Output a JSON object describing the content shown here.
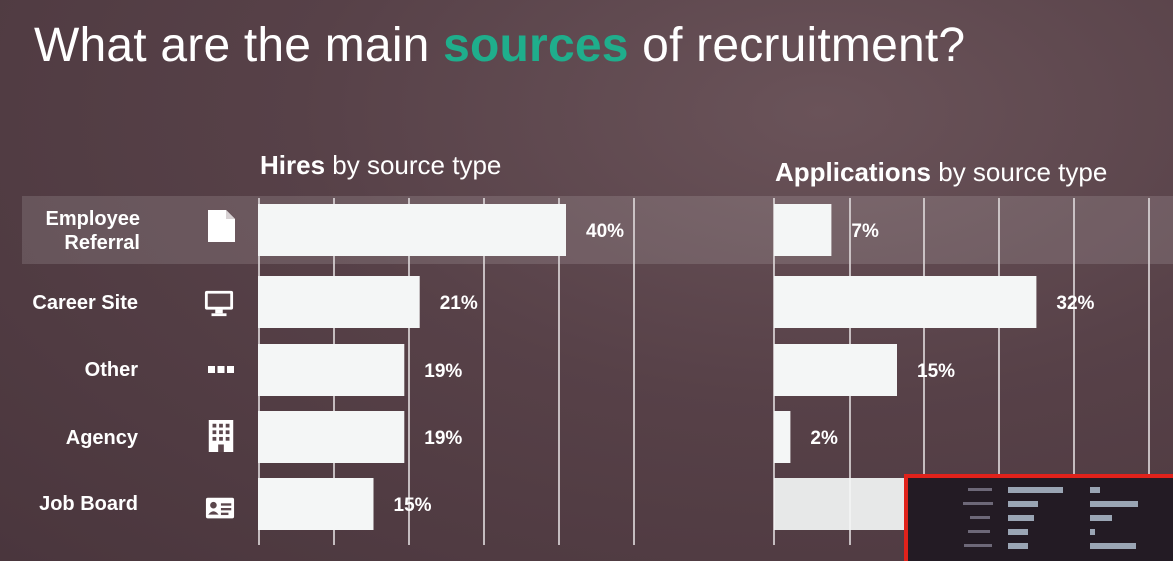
{
  "slide": {
    "title_before": "What are the main ",
    "title_accent": "sources",
    "title_after": " of recruitment?"
  },
  "hires_chart": {
    "title_bold": "Hires",
    "title_rest": " by source type"
  },
  "apps_chart": {
    "title_bold": "Applications",
    "title_rest": " by source type"
  },
  "rows": [
    {
      "label_line1": "Employee",
      "label_line2": "Referral",
      "icon": "document-icon"
    },
    {
      "label_line1": "Career Site",
      "label_line2": "",
      "icon": "monitor-icon"
    },
    {
      "label_line1": "Other",
      "label_line2": "",
      "icon": "more-dots-icon"
    },
    {
      "label_line1": "Agency",
      "label_line2": "",
      "icon": "building-icon"
    },
    {
      "label_line1": "Job Board",
      "label_line2": "",
      "icon": "contact-card-icon"
    }
  ],
  "colors": {
    "accent": "#1fae8c",
    "bar": "#f4f6f6",
    "background": "#574148",
    "pip_border": "#e0221b"
  },
  "chart_data": [
    {
      "type": "bar",
      "orientation": "horizontal",
      "title": "Hires by source type",
      "categories": [
        "Employee Referral",
        "Career Site",
        "Other",
        "Agency",
        "Job Board"
      ],
      "values": [
        40,
        21,
        19,
        19,
        15
      ],
      "value_labels": [
        "40%",
        "21%",
        "19%",
        "19%",
        "15%"
      ],
      "unit": "%",
      "grid": true
    },
    {
      "type": "bar",
      "orientation": "horizontal",
      "title": "Applications by source type",
      "categories": [
        "Employee Referral",
        "Career Site",
        "Other",
        "Agency",
        "Job Board"
      ],
      "values": [
        7,
        32,
        15,
        2,
        null
      ],
      "value_labels": [
        "7%",
        "32%",
        "15%",
        "2%",
        null
      ],
      "unit": "%",
      "grid": true
    }
  ]
}
